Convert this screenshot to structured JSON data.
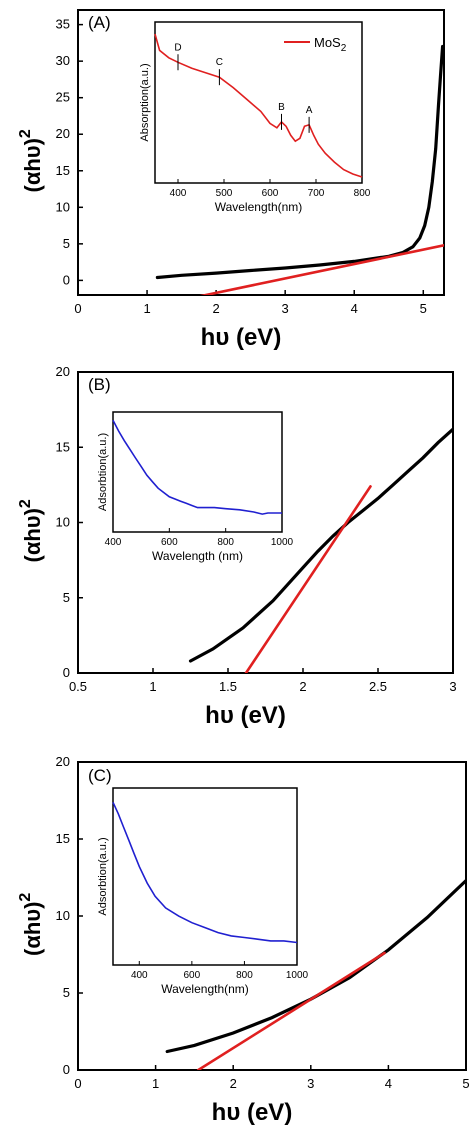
{
  "panels": [
    {
      "label": "(A)",
      "ylabel": "(αhυ)",
      "ylabel_sup": "2",
      "xlabel": "hυ (eV)",
      "chart_data": {
        "type": "line",
        "xlim": [
          0,
          5.3
        ],
        "ylim": [
          -2,
          37
        ],
        "xticks": [
          0,
          1,
          2,
          3,
          4,
          5
        ],
        "yticks": [
          0,
          5,
          10,
          15,
          20,
          25,
          30,
          35
        ],
        "series": [
          {
            "color": "#000000",
            "x": [
              1.15,
              1.5,
              2.0,
              2.5,
              3.0,
              3.5,
              4.0,
              4.5,
              4.7,
              4.85,
              4.95,
              5.02,
              5.08,
              5.13,
              5.18,
              5.22,
              5.25,
              5.28
            ],
            "y": [
              0.4,
              0.7,
              1.0,
              1.35,
              1.7,
              2.1,
              2.6,
              3.3,
              3.8,
              4.6,
              5.8,
              7.5,
              10,
              13.5,
              18,
              24,
              28,
              32
            ]
          },
          {
            "color": "#e02020",
            "x": [
              1.75,
              5.3
            ],
            "y": [
              -2.2,
              4.8
            ]
          }
        ]
      },
      "inset": {
        "ylabel": "Absorption(a.u.)",
        "xlabel": "Wavelength(nm)",
        "legend": "MoS2",
        "legend_main": "MoS",
        "legend_sub": "2",
        "chart_data": {
          "type": "line",
          "xlim": [
            350,
            800
          ],
          "ylim": [
            0,
            1
          ],
          "xticks": [
            400,
            500,
            600,
            700,
            800
          ],
          "series": [
            {
              "name": "MoS2",
              "color": "#e02020",
              "x": [
                350,
                360,
                380,
                400,
                430,
                460,
                490,
                520,
                550,
                580,
                600,
                615,
                625,
                635,
                645,
                655,
                665,
                675,
                685,
                695,
                705,
                720,
                740,
                760,
                780,
                800
              ],
              "y": [
                0.96,
                0.85,
                0.8,
                0.77,
                0.73,
                0.7,
                0.67,
                0.6,
                0.52,
                0.44,
                0.36,
                0.33,
                0.37,
                0.34,
                0.28,
                0.24,
                0.26,
                0.34,
                0.35,
                0.28,
                0.22,
                0.16,
                0.1,
                0.05,
                0.02,
                0.0
              ]
            }
          ],
          "annotations": [
            {
              "text": "D",
              "x": 400,
              "y": 0.77
            },
            {
              "text": "C",
              "x": 490,
              "y": 0.67
            },
            {
              "text": "B",
              "x": 625,
              "y": 0.37
            },
            {
              "text": "A",
              "x": 685,
              "y": 0.35
            }
          ]
        }
      }
    },
    {
      "label": "(B)",
      "ylabel": "(αhυ)",
      "ylabel_sup": "2",
      "xlabel": "hυ (eV)",
      "chart_data": {
        "type": "line",
        "xlim": [
          0.5,
          3.0
        ],
        "ylim": [
          0,
          20
        ],
        "xticks": [
          0.5,
          1.0,
          1.5,
          2.0,
          2.5,
          3.0
        ],
        "yticks": [
          0,
          5,
          10,
          15,
          20
        ],
        "series": [
          {
            "color": "#000000",
            "x": [
              1.25,
              1.4,
              1.6,
              1.8,
              2.0,
              2.1,
              2.2,
              2.3,
              2.4,
              2.5,
              2.6,
              2.7,
              2.8,
              2.9,
              3.0
            ],
            "y": [
              0.8,
              1.6,
              3.0,
              4.8,
              7.0,
              8.1,
              9.1,
              10.0,
              10.8,
              11.6,
              12.5,
              13.4,
              14.3,
              15.3,
              16.2
            ]
          },
          {
            "color": "#e02020",
            "x": [
              1.62,
              2.45
            ],
            "y": [
              0,
              12.4
            ]
          }
        ]
      },
      "inset": {
        "ylabel": "Adsorbtion(a.u.)",
        "xlabel": "Wavelength (nm)",
        "chart_data": {
          "type": "line",
          "xlim": [
            400,
            1000
          ],
          "ylim": [
            0,
            1
          ],
          "xticks": [
            400,
            600,
            800,
            1000
          ],
          "series": [
            {
              "color": "#2020d0",
              "x": [
                400,
                420,
                440,
                460,
                480,
                500,
                520,
                540,
                560,
                580,
                600,
                620,
                640,
                660,
                680,
                700,
                720,
                760,
                800,
                850,
                900,
                930,
                950,
                1000
              ],
              "y": [
                0.98,
                0.88,
                0.79,
                0.71,
                0.63,
                0.55,
                0.47,
                0.41,
                0.35,
                0.31,
                0.27,
                0.25,
                0.23,
                0.21,
                0.19,
                0.17,
                0.17,
                0.17,
                0.16,
                0.15,
                0.13,
                0.11,
                0.12,
                0.12
              ]
            }
          ]
        }
      }
    },
    {
      "label": "(C)",
      "ylabel": "(αhυ)",
      "ylabel_sup": "2",
      "xlabel": "hυ (eV)",
      "chart_data": {
        "type": "line",
        "xlim": [
          0,
          5
        ],
        "ylim": [
          0,
          20
        ],
        "xticks": [
          0,
          1,
          2,
          3,
          4,
          5
        ],
        "yticks": [
          0,
          5,
          10,
          15,
          20
        ],
        "series": [
          {
            "color": "#000000",
            "x": [
              1.15,
              1.5,
              2.0,
              2.5,
              3.0,
              3.5,
              4.0,
              4.5,
              5.0
            ],
            "y": [
              1.2,
              1.6,
              2.4,
              3.4,
              4.6,
              6.0,
              7.8,
              9.9,
              12.3
            ]
          },
          {
            "color": "#e02020",
            "x": [
              1.55,
              3.95
            ],
            "y": [
              0,
              7.6
            ]
          }
        ]
      },
      "inset": {
        "ylabel": "Adsorbtion(a.u.)",
        "xlabel": "Wavelength(nm)",
        "chart_data": {
          "type": "line",
          "xlim": [
            300,
            1000
          ],
          "ylim": [
            0,
            1
          ],
          "xticks": [
            400,
            600,
            800,
            1000
          ],
          "series": [
            {
              "color": "#2020d0",
              "x": [
                300,
                320,
                340,
                360,
                380,
                400,
                430,
                460,
                500,
                550,
                600,
                650,
                700,
                750,
                800,
                850,
                900,
                950,
                1000
              ],
              "y": [
                0.95,
                0.88,
                0.8,
                0.72,
                0.64,
                0.56,
                0.46,
                0.38,
                0.31,
                0.26,
                0.22,
                0.19,
                0.16,
                0.14,
                0.13,
                0.12,
                0.11,
                0.11,
                0.1
              ]
            }
          ]
        }
      }
    }
  ]
}
